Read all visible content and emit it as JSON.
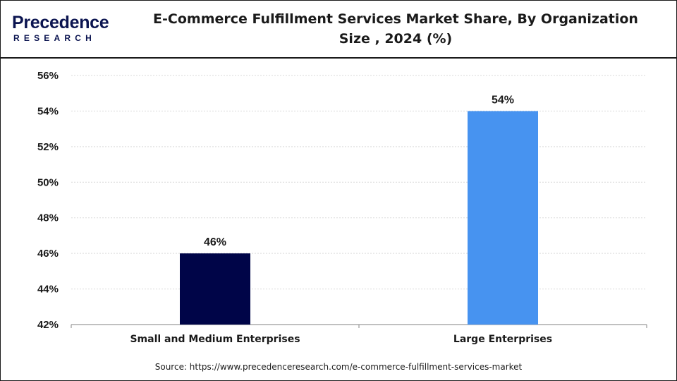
{
  "logo": {
    "top": "Precedence",
    "bottom": "RESEARCH"
  },
  "source_text": "Source: https://www.precedenceresearch.com/e-commerce-fulfillment-services-market",
  "chart_data": {
    "type": "bar",
    "title": "E-Commerce Fulfillment Services Market Share, By Organization Size , 2024 (%)",
    "categories": [
      "Small and Medium Enterprises",
      "Large Enterprises"
    ],
    "values": [
      46,
      54
    ],
    "data_labels": [
      "46%",
      "54%"
    ],
    "colors": [
      "#000548",
      "#4793f0"
    ],
    "ylim": [
      42,
      56
    ],
    "yticks": [
      42,
      44,
      46,
      48,
      50,
      52,
      54,
      56
    ],
    "ytick_labels": [
      "42%",
      "44%",
      "46%",
      "48%",
      "50%",
      "52%",
      "54%",
      "56%"
    ],
    "grid": true,
    "legend": "none"
  }
}
